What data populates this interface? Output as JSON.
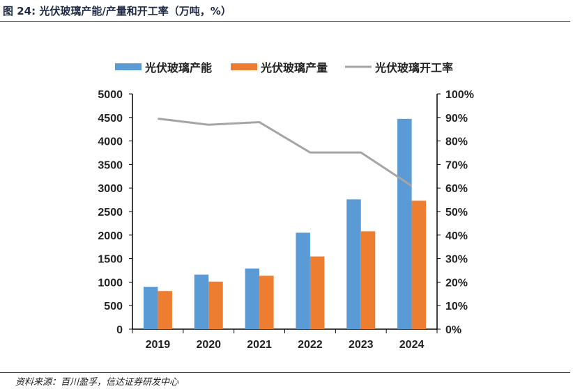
{
  "title": "图 24:  光伏玻璃产能/产量和开工率（万吨，%）",
  "source": "资料来源：百川盈孚，信达证券研发中心",
  "chart_data": {
    "type": "bar",
    "categories": [
      "2019",
      "2020",
      "2021",
      "2022",
      "2023",
      "2024"
    ],
    "series": [
      {
        "name": "光伏玻璃产能",
        "type": "bar",
        "axis": "left",
        "color": "#5b9bd5",
        "values": [
          900,
          1160,
          1290,
          2050,
          2760,
          4470
        ]
      },
      {
        "name": "光伏玻璃产量",
        "type": "bar",
        "axis": "left",
        "color": "#ed7d31",
        "values": [
          810,
          1010,
          1135,
          1545,
          2080,
          2730
        ]
      },
      {
        "name": "光伏玻璃开工率",
        "type": "line",
        "axis": "right",
        "color": "#a5a5a5",
        "values": [
          89.5,
          86.9,
          88.0,
          75.1,
          75.1,
          60.9
        ]
      }
    ],
    "ylim": [
      0,
      5000
    ],
    "yticks": [
      "0",
      "500",
      "1000",
      "1500",
      "2000",
      "2500",
      "3000",
      "3500",
      "4000",
      "4500",
      "5000"
    ],
    "y2lim": [
      0,
      100
    ],
    "y2ticks": [
      "0%",
      "10%",
      "20%",
      "30%",
      "40%",
      "50%",
      "60%",
      "70%",
      "80%",
      "90%",
      "100%"
    ],
    "legend_position": "top",
    "grid": false
  }
}
